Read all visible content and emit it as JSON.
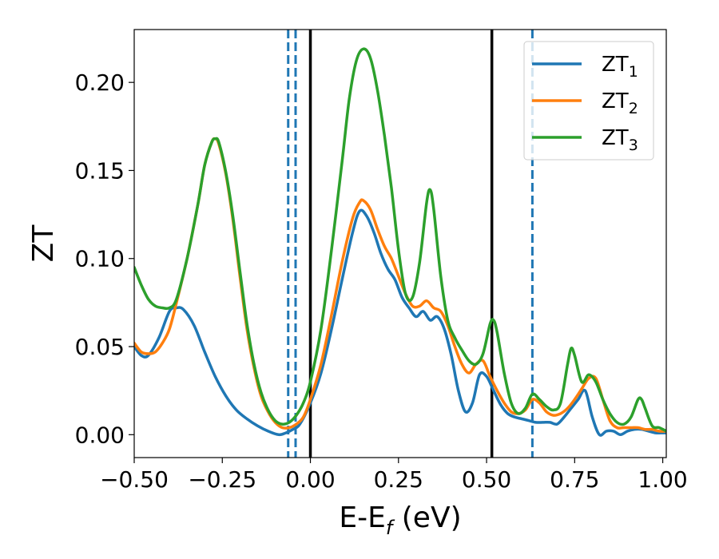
{
  "chart_data": {
    "type": "line",
    "title": "",
    "xlabel": "E-E",
    "xlabel_sub": "f",
    "xlabel_unit": " (eV)",
    "ylabel": "ZT",
    "xlim": [
      -0.5,
      1.01
    ],
    "ylim": [
      -0.013,
      0.23
    ],
    "grid": false,
    "legend_position": "top-right",
    "x_ticks": [
      -0.5,
      -0.25,
      0.0,
      0.25,
      0.5,
      0.75,
      1.0
    ],
    "x_tick_labels": [
      "−0.50",
      "−0.25",
      "0.00",
      "0.25",
      "0.50",
      "0.75",
      "1.00"
    ],
    "y_ticks": [
      0.0,
      0.05,
      0.1,
      0.15,
      0.2
    ],
    "y_tick_labels": [
      "0.00",
      "0.05",
      "0.10",
      "0.15",
      "0.20"
    ],
    "series": [
      {
        "name": "ZT",
        "name_sub": "1",
        "color": "#1f77b4",
        "points": [
          [
            -0.5,
            0.05
          ],
          [
            -0.48,
            0.045
          ],
          [
            -0.46,
            0.045
          ],
          [
            -0.43,
            0.055
          ],
          [
            -0.4,
            0.07
          ],
          [
            -0.38,
            0.072
          ],
          [
            -0.36,
            0.071
          ],
          [
            -0.33,
            0.062
          ],
          [
            -0.3,
            0.047
          ],
          [
            -0.27,
            0.033
          ],
          [
            -0.24,
            0.022
          ],
          [
            -0.21,
            0.014
          ],
          [
            -0.18,
            0.009
          ],
          [
            -0.15,
            0.005
          ],
          [
            -0.12,
            0.002
          ],
          [
            -0.09,
            0.0
          ],
          [
            -0.07,
            0.001
          ],
          [
            -0.05,
            0.003
          ],
          [
            -0.03,
            0.006
          ],
          [
            0.0,
            0.018
          ],
          [
            0.03,
            0.035
          ],
          [
            0.06,
            0.06
          ],
          [
            0.09,
            0.088
          ],
          [
            0.12,
            0.115
          ],
          [
            0.14,
            0.127
          ],
          [
            0.16,
            0.124
          ],
          [
            0.18,
            0.115
          ],
          [
            0.2,
            0.103
          ],
          [
            0.22,
            0.094
          ],
          [
            0.24,
            0.088
          ],
          [
            0.26,
            0.078
          ],
          [
            0.28,
            0.072
          ],
          [
            0.3,
            0.067
          ],
          [
            0.32,
            0.07
          ],
          [
            0.34,
            0.065
          ],
          [
            0.36,
            0.067
          ],
          [
            0.38,
            0.06
          ],
          [
            0.4,
            0.045
          ],
          [
            0.42,
            0.025
          ],
          [
            0.44,
            0.013
          ],
          [
            0.46,
            0.018
          ],
          [
            0.48,
            0.034
          ],
          [
            0.5,
            0.033
          ],
          [
            0.52,
            0.025
          ],
          [
            0.54,
            0.017
          ],
          [
            0.56,
            0.012
          ],
          [
            0.58,
            0.01
          ],
          [
            0.6,
            0.009
          ],
          [
            0.62,
            0.008
          ],
          [
            0.64,
            0.007
          ],
          [
            0.66,
            0.007
          ],
          [
            0.68,
            0.007
          ],
          [
            0.7,
            0.006
          ],
          [
            0.72,
            0.01
          ],
          [
            0.74,
            0.015
          ],
          [
            0.76,
            0.02
          ],
          [
            0.78,
            0.025
          ],
          [
            0.8,
            0.01
          ],
          [
            0.82,
            0.0
          ],
          [
            0.84,
            0.002
          ],
          [
            0.86,
            0.002
          ],
          [
            0.88,
            0.0
          ],
          [
            0.9,
            0.002
          ],
          [
            0.92,
            0.003
          ],
          [
            0.94,
            0.003
          ],
          [
            0.96,
            0.002
          ],
          [
            0.98,
            0.001
          ],
          [
            1.0,
            0.001
          ],
          [
            1.01,
            0.001
          ]
        ]
      },
      {
        "name": "ZT",
        "name_sub": "2",
        "color": "#ff7f0e",
        "points": [
          [
            -0.5,
            0.052
          ],
          [
            -0.48,
            0.047
          ],
          [
            -0.46,
            0.046
          ],
          [
            -0.44,
            0.047
          ],
          [
            -0.42,
            0.052
          ],
          [
            -0.4,
            0.06
          ],
          [
            -0.38,
            0.075
          ],
          [
            -0.35,
            0.1
          ],
          [
            -0.32,
            0.13
          ],
          [
            -0.3,
            0.153
          ],
          [
            -0.28,
            0.166
          ],
          [
            -0.27,
            0.168
          ],
          [
            -0.26,
            0.165
          ],
          [
            -0.24,
            0.148
          ],
          [
            -0.22,
            0.122
          ],
          [
            -0.2,
            0.09
          ],
          [
            -0.18,
            0.06
          ],
          [
            -0.16,
            0.038
          ],
          [
            -0.14,
            0.022
          ],
          [
            -0.12,
            0.013
          ],
          [
            -0.1,
            0.007
          ],
          [
            -0.08,
            0.004
          ],
          [
            -0.06,
            0.004
          ],
          [
            -0.04,
            0.006
          ],
          [
            -0.02,
            0.01
          ],
          [
            0.0,
            0.02
          ],
          [
            0.03,
            0.04
          ],
          [
            0.06,
            0.068
          ],
          [
            0.09,
            0.098
          ],
          [
            0.12,
            0.123
          ],
          [
            0.14,
            0.132
          ],
          [
            0.15,
            0.133
          ],
          [
            0.17,
            0.128
          ],
          [
            0.19,
            0.117
          ],
          [
            0.21,
            0.107
          ],
          [
            0.23,
            0.1
          ],
          [
            0.25,
            0.09
          ],
          [
            0.27,
            0.08
          ],
          [
            0.29,
            0.073
          ],
          [
            0.31,
            0.073
          ],
          [
            0.33,
            0.076
          ],
          [
            0.35,
            0.072
          ],
          [
            0.37,
            0.07
          ],
          [
            0.39,
            0.062
          ],
          [
            0.41,
            0.05
          ],
          [
            0.43,
            0.04
          ],
          [
            0.45,
            0.035
          ],
          [
            0.47,
            0.04
          ],
          [
            0.49,
            0.042
          ],
          [
            0.51,
            0.033
          ],
          [
            0.53,
            0.025
          ],
          [
            0.55,
            0.018
          ],
          [
            0.57,
            0.013
          ],
          [
            0.59,
            0.012
          ],
          [
            0.61,
            0.014
          ],
          [
            0.63,
            0.02
          ],
          [
            0.65,
            0.018
          ],
          [
            0.67,
            0.013
          ],
          [
            0.69,
            0.011
          ],
          [
            0.71,
            0.012
          ],
          [
            0.73,
            0.015
          ],
          [
            0.75,
            0.02
          ],
          [
            0.77,
            0.026
          ],
          [
            0.79,
            0.032
          ],
          [
            0.81,
            0.032
          ],
          [
            0.83,
            0.02
          ],
          [
            0.85,
            0.008
          ],
          [
            0.87,
            0.004
          ],
          [
            0.89,
            0.004
          ],
          [
            0.91,
            0.004
          ],
          [
            0.93,
            0.004
          ],
          [
            0.95,
            0.003
          ],
          [
            0.97,
            0.003
          ],
          [
            0.99,
            0.002
          ],
          [
            1.01,
            0.002
          ]
        ]
      },
      {
        "name": "ZT",
        "name_sub": "3",
        "color": "#2ca02c",
        "points": [
          [
            -0.5,
            0.095
          ],
          [
            -0.48,
            0.085
          ],
          [
            -0.46,
            0.077
          ],
          [
            -0.44,
            0.073
          ],
          [
            -0.42,
            0.072
          ],
          [
            -0.4,
            0.072
          ],
          [
            -0.38,
            0.077
          ],
          [
            -0.35,
            0.1
          ],
          [
            -0.32,
            0.13
          ],
          [
            -0.3,
            0.153
          ],
          [
            -0.28,
            0.166
          ],
          [
            -0.27,
            0.168
          ],
          [
            -0.26,
            0.166
          ],
          [
            -0.24,
            0.149
          ],
          [
            -0.22,
            0.124
          ],
          [
            -0.2,
            0.093
          ],
          [
            -0.18,
            0.063
          ],
          [
            -0.16,
            0.04
          ],
          [
            -0.14,
            0.024
          ],
          [
            -0.12,
            0.014
          ],
          [
            -0.1,
            0.008
          ],
          [
            -0.08,
            0.006
          ],
          [
            -0.06,
            0.007
          ],
          [
            -0.04,
            0.011
          ],
          [
            -0.02,
            0.018
          ],
          [
            0.0,
            0.03
          ],
          [
            0.03,
            0.06
          ],
          [
            0.06,
            0.105
          ],
          [
            0.09,
            0.155
          ],
          [
            0.11,
            0.19
          ],
          [
            0.13,
            0.212
          ],
          [
            0.15,
            0.219
          ],
          [
            0.17,
            0.214
          ],
          [
            0.19,
            0.196
          ],
          [
            0.21,
            0.17
          ],
          [
            0.23,
            0.14
          ],
          [
            0.25,
            0.105
          ],
          [
            0.27,
            0.08
          ],
          [
            0.29,
            0.078
          ],
          [
            0.31,
            0.098
          ],
          [
            0.33,
            0.132
          ],
          [
            0.34,
            0.139
          ],
          [
            0.35,
            0.128
          ],
          [
            0.37,
            0.09
          ],
          [
            0.39,
            0.065
          ],
          [
            0.41,
            0.055
          ],
          [
            0.43,
            0.048
          ],
          [
            0.45,
            0.042
          ],
          [
            0.47,
            0.04
          ],
          [
            0.49,
            0.046
          ],
          [
            0.51,
            0.063
          ],
          [
            0.52,
            0.065
          ],
          [
            0.53,
            0.058
          ],
          [
            0.55,
            0.035
          ],
          [
            0.57,
            0.018
          ],
          [
            0.59,
            0.012
          ],
          [
            0.61,
            0.015
          ],
          [
            0.63,
            0.023
          ],
          [
            0.65,
            0.02
          ],
          [
            0.67,
            0.016
          ],
          [
            0.69,
            0.014
          ],
          [
            0.71,
            0.018
          ],
          [
            0.73,
            0.04
          ],
          [
            0.74,
            0.049
          ],
          [
            0.75,
            0.045
          ],
          [
            0.77,
            0.03
          ],
          [
            0.79,
            0.034
          ],
          [
            0.81,
            0.03
          ],
          [
            0.83,
            0.02
          ],
          [
            0.85,
            0.012
          ],
          [
            0.87,
            0.007
          ],
          [
            0.89,
            0.006
          ],
          [
            0.91,
            0.01
          ],
          [
            0.93,
            0.02
          ],
          [
            0.94,
            0.02
          ],
          [
            0.95,
            0.015
          ],
          [
            0.97,
            0.005
          ],
          [
            0.99,
            0.004
          ],
          [
            1.01,
            0.002
          ]
        ]
      }
    ],
    "vertical_lines": [
      {
        "x": -0.063,
        "style": "dashed",
        "color": "#1f77b4"
      },
      {
        "x": -0.042,
        "style": "dashed",
        "color": "#1f77b4"
      },
      {
        "x": 0.0,
        "style": "solid",
        "color": "#000000"
      },
      {
        "x": 0.515,
        "style": "solid",
        "color": "#000000"
      },
      {
        "x": 0.63,
        "style": "dashed",
        "color": "#1f77b4"
      }
    ]
  }
}
